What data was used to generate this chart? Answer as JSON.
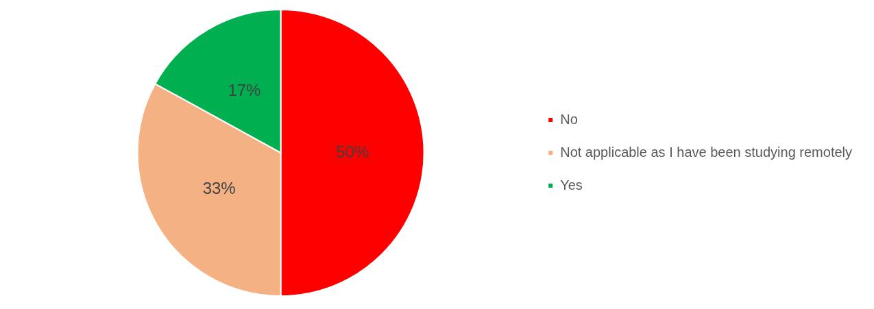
{
  "chart_data": {
    "type": "pie",
    "categories": [
      "No",
      "Not applicable as I have been studying remotely",
      "Yes"
    ],
    "values": [
      50,
      33,
      17
    ],
    "colors": [
      "#ff0000",
      "#f4b183",
      "#00b050"
    ],
    "value_labels": [
      "50%",
      "33%",
      "17%"
    ],
    "legend": "right"
  }
}
